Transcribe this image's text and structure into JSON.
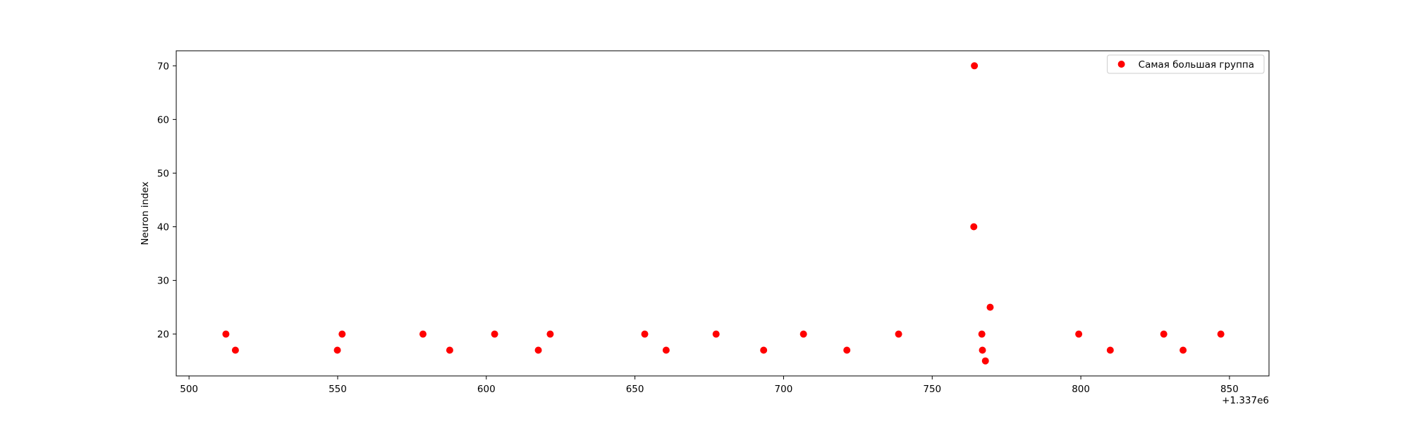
{
  "chart_data": {
    "type": "scatter",
    "title": "",
    "xlabel": "",
    "ylabel": "Neuron index",
    "x_offset_label": "+1.337e6",
    "x_offset": 1337000,
    "xlim": [
      495.7,
      863.3
    ],
    "ylim": [
      12.2,
      72.8
    ],
    "x_ticks": [
      500,
      550,
      600,
      650,
      700,
      750,
      800,
      850
    ],
    "y_ticks": [
      20,
      30,
      40,
      50,
      60,
      70
    ],
    "grid": false,
    "legend_position": "upper right",
    "series": [
      {
        "name": "Самая большая группа",
        "color": "#ff0000",
        "marker": "circle",
        "points": [
          {
            "x": 1337512.4,
            "y": 20
          },
          {
            "x": 1337515.6,
            "y": 17
          },
          {
            "x": 1337549.9,
            "y": 17
          },
          {
            "x": 1337551.5,
            "y": 20
          },
          {
            "x": 1337578.7,
            "y": 20
          },
          {
            "x": 1337587.7,
            "y": 17
          },
          {
            "x": 1337602.8,
            "y": 20
          },
          {
            "x": 1337617.5,
            "y": 17
          },
          {
            "x": 1337621.5,
            "y": 20
          },
          {
            "x": 1337653.3,
            "y": 20
          },
          {
            "x": 1337660.5,
            "y": 17
          },
          {
            "x": 1337677.3,
            "y": 20
          },
          {
            "x": 1337693.3,
            "y": 17
          },
          {
            "x": 1337706.7,
            "y": 20
          },
          {
            "x": 1337721.3,
            "y": 17
          },
          {
            "x": 1337738.7,
            "y": 20
          },
          {
            "x": 1337764.0,
            "y": 40
          },
          {
            "x": 1337764.2,
            "y": 70
          },
          {
            "x": 1337766.7,
            "y": 20
          },
          {
            "x": 1337766.9,
            "y": 17
          },
          {
            "x": 1337767.9,
            "y": 15
          },
          {
            "x": 1337769.5,
            "y": 25
          },
          {
            "x": 1337799.3,
            "y": 20
          },
          {
            "x": 1337809.9,
            "y": 17
          },
          {
            "x": 1337827.9,
            "y": 20
          },
          {
            "x": 1337834.4,
            "y": 17
          },
          {
            "x": 1337847.1,
            "y": 20
          }
        ]
      }
    ]
  }
}
